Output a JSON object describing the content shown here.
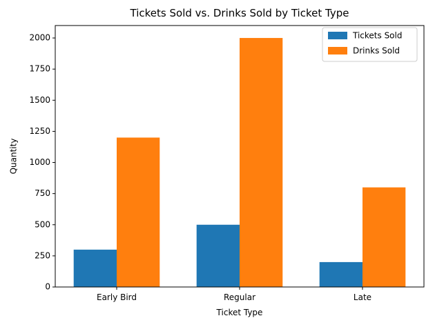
{
  "chart_data": {
    "type": "bar",
    "title": "Tickets Sold vs. Drinks Sold by Ticket Type",
    "xlabel": "Ticket Type",
    "ylabel": "Quantity",
    "categories": [
      "Early Bird",
      "Regular",
      "Late"
    ],
    "series": [
      {
        "name": "Tickets Sold",
        "values": [
          300,
          500,
          200
        ],
        "color": "#1f77b4"
      },
      {
        "name": "Drinks Sold",
        "values": [
          1200,
          2000,
          800
        ],
        "color": "#ff7f0e"
      }
    ],
    "ylim": [
      0,
      2100
    ],
    "yticks": [
      0,
      250,
      500,
      750,
      1000,
      1250,
      1500,
      1750,
      2000
    ],
    "grid": false,
    "legend_position": "top-right"
  }
}
